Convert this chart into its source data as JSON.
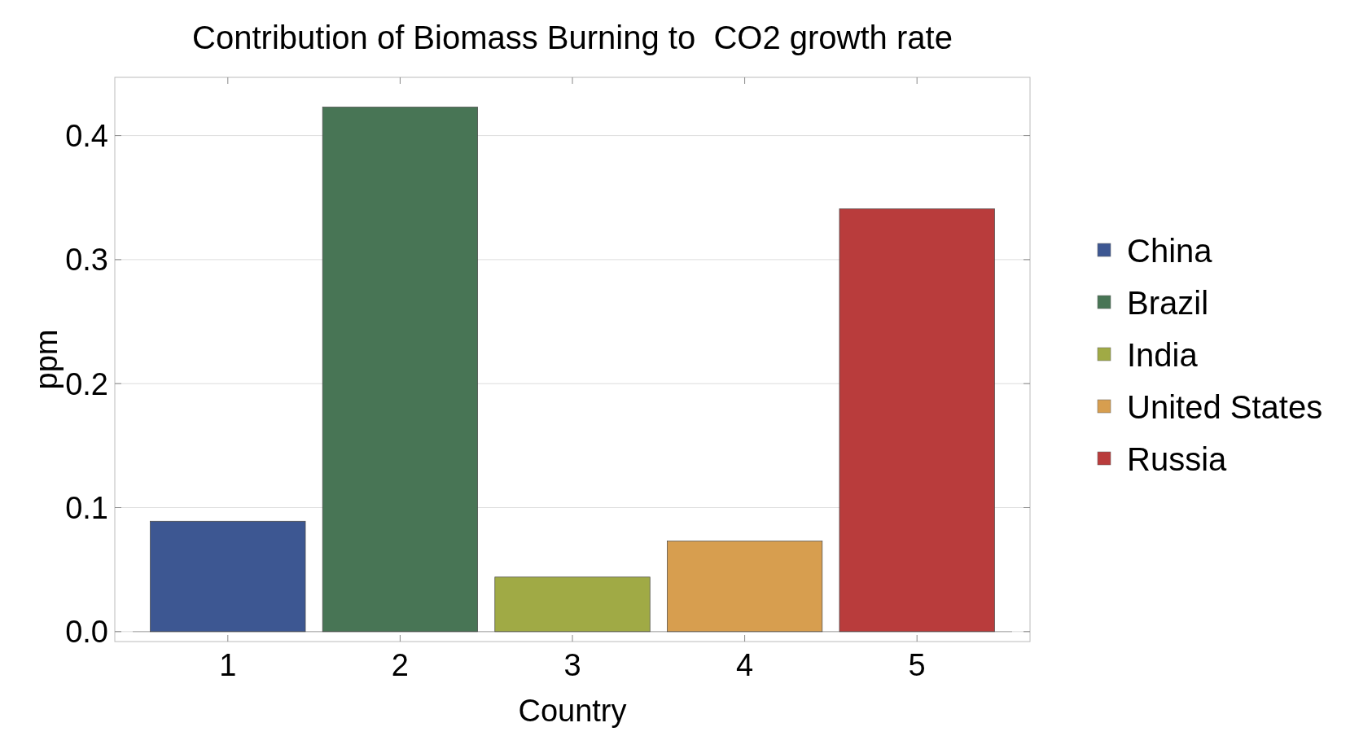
{
  "chart_data": {
    "type": "bar",
    "title": "Contribution of Biomass Burning to  CO2 growth rate",
    "xlabel": "Country",
    "ylabel": "ppm",
    "categories": [
      "1",
      "2",
      "3",
      "4",
      "5"
    ],
    "series": [
      {
        "name": "China",
        "color": "#3d5792",
        "values": [
          0.089,
          null,
          null,
          null,
          null
        ]
      },
      {
        "name": "Brazil",
        "color": "#487555",
        "values": [
          null,
          0.423,
          null,
          null,
          null
        ]
      },
      {
        "name": "India",
        "color": "#a0aa45",
        "values": [
          null,
          null,
          0.044,
          null,
          null
        ]
      },
      {
        "name": "United States",
        "color": "#d79e4f",
        "values": [
          null,
          null,
          null,
          0.073,
          null
        ]
      },
      {
        "name": "Russia",
        "color": "#b93c3c",
        "values": [
          null,
          null,
          null,
          null,
          0.341
        ]
      }
    ],
    "ylim": [
      -0.008,
      0.447
    ],
    "yticks": [
      {
        "value": 0,
        "label": "0.0"
      },
      0.1,
      0.2,
      0.3,
      0.4
    ],
    "grid": "y",
    "legend": "right"
  }
}
